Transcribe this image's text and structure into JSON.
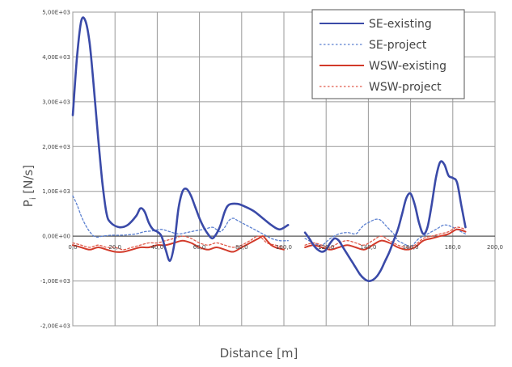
{
  "chart_data": {
    "type": "line",
    "xlabel": "Distance [m]",
    "ylabel": "P",
    "ylabel_sub": "i",
    "ylabel_unit": " [N/s]",
    "xlim": [
      0,
      200
    ],
    "ylim": [
      -2000,
      5000
    ],
    "x_ticks": [
      0,
      20,
      40,
      60,
      80,
      100,
      120,
      140,
      160,
      180,
      200
    ],
    "x_tick_labels": [
      "0,0",
      "20,0",
      "40,0",
      "60,0",
      "80,0",
      "100,0",
      "120,0",
      "140,0",
      "160,0",
      "180,0",
      "200,0"
    ],
    "y_ticks": [
      -2000,
      -1000,
      0,
      1000,
      2000,
      3000,
      4000,
      5000
    ],
    "y_tick_labels": [
      "-2,00E+03",
      "-1,00E+03",
      "0,00E+00",
      "1,00E+03",
      "2,00E+03",
      "3,00E+03",
      "4,00E+03",
      "5,00E+03"
    ],
    "grid": true,
    "legend_position": "top-right",
    "series": [
      {
        "name": "SE-existing",
        "color": "#3a4aa8",
        "style": "solid",
        "segments": [
          [
            [
              0,
              2700
            ],
            [
              2,
              4000
            ],
            [
              4,
              4800
            ],
            [
              6,
              4800
            ],
            [
              8,
              4300
            ],
            [
              10,
              3300
            ],
            [
              12,
              2200
            ],
            [
              14,
              1200
            ],
            [
              16,
              500
            ],
            [
              18,
              300
            ],
            [
              22,
              200
            ],
            [
              26,
              250
            ],
            [
              30,
              450
            ],
            [
              32,
              620
            ],
            [
              34,
              550
            ],
            [
              36,
              300
            ],
            [
              38,
              150
            ],
            [
              40,
              100
            ],
            [
              42,
              0
            ],
            [
              44,
              -300
            ],
            [
              46,
              -550
            ],
            [
              48,
              -200
            ],
            [
              50,
              600
            ],
            [
              52,
              1000
            ],
            [
              54,
              1050
            ],
            [
              56,
              900
            ],
            [
              58,
              650
            ],
            [
              60,
              400
            ],
            [
              62,
              200
            ],
            [
              64,
              50
            ],
            [
              66,
              -50
            ],
            [
              68,
              50
            ],
            [
              70,
              250
            ],
            [
              72,
              550
            ],
            [
              74,
              700
            ],
            [
              78,
              720
            ],
            [
              82,
              650
            ],
            [
              86,
              550
            ],
            [
              90,
              400
            ],
            [
              94,
              250
            ],
            [
              98,
              150
            ],
            [
              102,
              250
            ]
          ],
          [
            [
              110,
              80
            ],
            [
              112,
              -50
            ],
            [
              114,
              -200
            ],
            [
              116,
              -300
            ],
            [
              118,
              -350
            ],
            [
              120,
              -300
            ],
            [
              122,
              -150
            ],
            [
              124,
              -50
            ],
            [
              126,
              -100
            ],
            [
              128,
              -250
            ],
            [
              130,
              -400
            ],
            [
              132,
              -550
            ],
            [
              134,
              -700
            ],
            [
              136,
              -850
            ],
            [
              138,
              -950
            ],
            [
              140,
              -1000
            ],
            [
              142,
              -980
            ],
            [
              144,
              -900
            ],
            [
              146,
              -750
            ],
            [
              148,
              -550
            ],
            [
              150,
              -350
            ],
            [
              152,
              -100
            ],
            [
              154,
              150
            ],
            [
              156,
              500
            ],
            [
              158,
              850
            ],
            [
              160,
              950
            ],
            [
              162,
              700
            ],
            [
              164,
              300
            ],
            [
              166,
              50
            ],
            [
              168,
              200
            ],
            [
              170,
              700
            ],
            [
              172,
              1300
            ],
            [
              174,
              1650
            ],
            [
              176,
              1600
            ],
            [
              178,
              1350
            ],
            [
              180,
              1300
            ],
            [
              182,
              1200
            ],
            [
              184,
              700
            ],
            [
              186,
              200
            ]
          ]
        ]
      },
      {
        "name": "SE-project",
        "color": "#5a7fd0",
        "style": "dotted",
        "segments": [
          [
            [
              0,
              900
            ],
            [
              2,
              700
            ],
            [
              4,
              450
            ],
            [
              6,
              250
            ],
            [
              8,
              100
            ],
            [
              10,
              0
            ],
            [
              12,
              -20
            ],
            [
              14,
              0
            ],
            [
              18,
              20
            ],
            [
              22,
              20
            ],
            [
              26,
              30
            ],
            [
              30,
              50
            ],
            [
              34,
              100
            ],
            [
              38,
              120
            ],
            [
              42,
              150
            ],
            [
              46,
              100
            ],
            [
              50,
              50
            ],
            [
              54,
              80
            ],
            [
              58,
              120
            ],
            [
              62,
              150
            ],
            [
              66,
              200
            ],
            [
              68,
              150
            ],
            [
              70,
              100
            ],
            [
              72,
              200
            ],
            [
              74,
              350
            ],
            [
              76,
              400
            ],
            [
              78,
              350
            ],
            [
              82,
              250
            ],
            [
              86,
              150
            ],
            [
              90,
              50
            ],
            [
              94,
              -50
            ],
            [
              98,
              -100
            ],
            [
              102,
              -100
            ]
          ],
          [
            [
              110,
              -50
            ],
            [
              114,
              -150
            ],
            [
              118,
              -200
            ],
            [
              122,
              -50
            ],
            [
              126,
              50
            ],
            [
              130,
              80
            ],
            [
              134,
              50
            ],
            [
              136,
              150
            ],
            [
              138,
              250
            ],
            [
              140,
              300
            ],
            [
              142,
              350
            ],
            [
              144,
              380
            ],
            [
              146,
              350
            ],
            [
              148,
              250
            ],
            [
              150,
              150
            ],
            [
              152,
              50
            ],
            [
              154,
              -100
            ],
            [
              156,
              -150
            ],
            [
              158,
              -200
            ],
            [
              160,
              -250
            ],
            [
              162,
              -150
            ],
            [
              164,
              -50
            ],
            [
              166,
              0
            ],
            [
              168,
              50
            ],
            [
              172,
              150
            ],
            [
              176,
              250
            ],
            [
              180,
              200
            ],
            [
              184,
              100
            ],
            [
              186,
              50
            ]
          ]
        ]
      },
      {
        "name": "WSW-existing",
        "color": "#d23a2a",
        "style": "solid",
        "segments": [
          [
            [
              0,
              -200
            ],
            [
              4,
              -250
            ],
            [
              8,
              -300
            ],
            [
              12,
              -250
            ],
            [
              16,
              -300
            ],
            [
              20,
              -350
            ],
            [
              24,
              -350
            ],
            [
              28,
              -300
            ],
            [
              32,
              -250
            ],
            [
              36,
              -250
            ],
            [
              40,
              -200
            ],
            [
              44,
              -200
            ],
            [
              48,
              -150
            ],
            [
              52,
              -100
            ],
            [
              56,
              -150
            ],
            [
              60,
              -250
            ],
            [
              64,
              -300
            ],
            [
              68,
              -250
            ],
            [
              72,
              -300
            ],
            [
              76,
              -350
            ],
            [
              80,
              -250
            ],
            [
              84,
              -150
            ],
            [
              88,
              -50
            ],
            [
              90,
              0
            ],
            [
              92,
              -100
            ],
            [
              94,
              -200
            ],
            [
              96,
              -250
            ],
            [
              100,
              -300
            ]
          ],
          [
            [
              110,
              -250
            ],
            [
              114,
              -200
            ],
            [
              118,
              -250
            ],
            [
              122,
              -300
            ],
            [
              126,
              -250
            ],
            [
              130,
              -200
            ],
            [
              134,
              -250
            ],
            [
              138,
              -300
            ],
            [
              142,
              -200
            ],
            [
              146,
              -100
            ],
            [
              150,
              -150
            ],
            [
              154,
              -250
            ],
            [
              158,
              -300
            ],
            [
              162,
              -250
            ],
            [
              166,
              -100
            ],
            [
              170,
              -50
            ],
            [
              174,
              0
            ],
            [
              178,
              50
            ],
            [
              182,
              150
            ],
            [
              186,
              100
            ]
          ]
        ]
      },
      {
        "name": "WSW-project",
        "color": "#e05a4a",
        "style": "dotted",
        "segments": [
          [
            [
              0,
              -150
            ],
            [
              4,
              -200
            ],
            [
              8,
              -250
            ],
            [
              12,
              -200
            ],
            [
              16,
              -250
            ],
            [
              20,
              -250
            ],
            [
              24,
              -300
            ],
            [
              28,
              -250
            ],
            [
              32,
              -200
            ],
            [
              36,
              -150
            ],
            [
              40,
              -150
            ],
            [
              44,
              -100
            ],
            [
              48,
              -50
            ],
            [
              52,
              0
            ],
            [
              56,
              -50
            ],
            [
              60,
              -150
            ],
            [
              64,
              -200
            ],
            [
              68,
              -150
            ],
            [
              72,
              -200
            ],
            [
              76,
              -250
            ],
            [
              80,
              -200
            ],
            [
              84,
              -100
            ],
            [
              88,
              0
            ],
            [
              92,
              -150
            ],
            [
              96,
              -200
            ],
            [
              100,
              -250
            ]
          ],
          [
            [
              110,
              -200
            ],
            [
              114,
              -150
            ],
            [
              118,
              -200
            ],
            [
              122,
              -250
            ],
            [
              126,
              -150
            ],
            [
              130,
              -100
            ],
            [
              134,
              -150
            ],
            [
              138,
              -200
            ],
            [
              142,
              -100
            ],
            [
              146,
              0
            ],
            [
              150,
              -100
            ],
            [
              154,
              -200
            ],
            [
              158,
              -250
            ],
            [
              162,
              -200
            ],
            [
              166,
              -50
            ],
            [
              170,
              0
            ],
            [
              174,
              50
            ],
            [
              178,
              100
            ],
            [
              182,
              200
            ],
            [
              186,
              150
            ]
          ]
        ]
      }
    ]
  }
}
